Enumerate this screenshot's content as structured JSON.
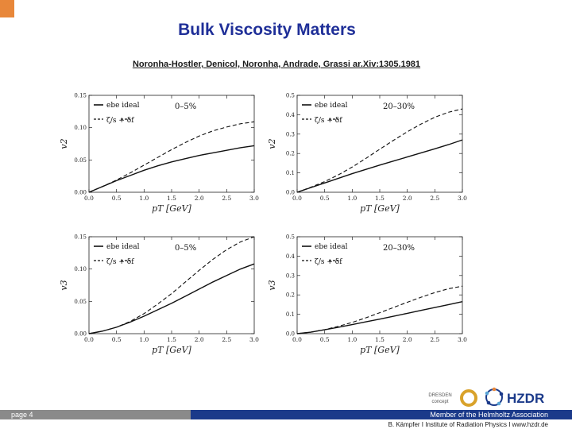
{
  "slide": {
    "title": "Bulk Viscosity Matters",
    "reference": "Noronha-Hostler, Denicol, Noronha, Andrade, Grassi ar.Xiv:1305.1981",
    "page_label": "page 4",
    "member_text": "Member of the Helmholtz Association",
    "credits": "B. Kämpfer  I  Institute of Radiation Physics  I  www.hzdr.de",
    "logo_dresden_line1": "DRESDEN",
    "logo_dresden_line2": "concept",
    "logo_hzdr": "HZDR",
    "accent_color": "#e8873a",
    "title_color": "#1f2f98",
    "footer_blue": "#1b3a8a",
    "footer_gray": "#8a8a8a"
  },
  "chart_data": [
    {
      "type": "line",
      "id": "v2-central",
      "ylabel": "v2",
      "xlabel": "pT [GeV]",
      "centrality": "0–5%",
      "xlim": [
        0,
        3
      ],
      "ylim": [
        0,
        0.15
      ],
      "xticks": [
        "0.0",
        "0.5",
        "1.0",
        "1.5",
        "2.0",
        "2.5",
        "3.0"
      ],
      "yticks": [
        "0.00",
        "0.05",
        "0.10",
        "0.15"
      ],
      "legend": [
        "ebe ideal",
        "ζ/s + δf"
      ],
      "x": [
        0,
        0.25,
        0.5,
        0.75,
        1.0,
        1.25,
        1.5,
        1.75,
        2.0,
        2.25,
        2.5,
        2.75,
        3.0
      ],
      "series": [
        {
          "name": "ebe ideal",
          "style": "solid",
          "values": [
            0,
            0.009,
            0.018,
            0.026,
            0.034,
            0.041,
            0.047,
            0.052,
            0.057,
            0.061,
            0.065,
            0.069,
            0.072
          ]
        },
        {
          "name": "ζ/s + δf",
          "style": "dashed",
          "values": [
            0,
            0.009,
            0.019,
            0.03,
            0.042,
            0.054,
            0.066,
            0.077,
            0.087,
            0.095,
            0.101,
            0.106,
            0.109
          ]
        }
      ]
    },
    {
      "type": "line",
      "id": "v2-midcentral",
      "ylabel": "v2",
      "xlabel": "pT [GeV]",
      "centrality": "20–30%",
      "xlim": [
        0,
        3
      ],
      "ylim": [
        0,
        0.5
      ],
      "xticks": [
        "0.0",
        "0.5",
        "1.0",
        "1.5",
        "2.0",
        "2.5",
        "3.0"
      ],
      "yticks": [
        "0.0",
        "0.1",
        "0.2",
        "0.3",
        "0.4",
        "0.5"
      ],
      "legend": [
        "ebe ideal",
        "ζ/s + δf"
      ],
      "x": [
        0,
        0.25,
        0.5,
        0.75,
        1.0,
        1.25,
        1.5,
        1.75,
        2.0,
        2.25,
        2.5,
        2.75,
        3.0
      ],
      "series": [
        {
          "name": "ebe ideal",
          "style": "solid",
          "values": [
            0,
            0.024,
            0.048,
            0.072,
            0.096,
            0.118,
            0.14,
            0.161,
            0.182,
            0.203,
            0.224,
            0.246,
            0.27
          ]
        },
        {
          "name": "ζ/s + δf",
          "style": "dashed",
          "values": [
            0,
            0.026,
            0.055,
            0.09,
            0.13,
            0.175,
            0.222,
            0.268,
            0.312,
            0.352,
            0.387,
            0.413,
            0.43
          ]
        }
      ]
    },
    {
      "type": "line",
      "id": "v3-central",
      "ylabel": "v3",
      "xlabel": "pT [GeV]",
      "centrality": "0–5%",
      "xlim": [
        0,
        3
      ],
      "ylim": [
        0,
        0.15
      ],
      "xticks": [
        "0.0",
        "0.5",
        "1.0",
        "1.5",
        "2.0",
        "2.5",
        "3.0"
      ],
      "yticks": [
        "0.00",
        "0.05",
        "0.10",
        "0.15"
      ],
      "legend": [
        "ebe ideal",
        "ζ/s + δf"
      ],
      "x": [
        0,
        0.25,
        0.5,
        0.75,
        1.0,
        1.25,
        1.5,
        1.75,
        2.0,
        2.25,
        2.5,
        2.75,
        3.0
      ],
      "series": [
        {
          "name": "ebe ideal",
          "style": "solid",
          "values": [
            0,
            0.004,
            0.01,
            0.018,
            0.027,
            0.037,
            0.047,
            0.058,
            0.069,
            0.08,
            0.09,
            0.1,
            0.108
          ]
        },
        {
          "name": "ζ/s + δf",
          "style": "dashed",
          "values": [
            0,
            0.004,
            0.01,
            0.019,
            0.031,
            0.046,
            0.062,
            0.08,
            0.098,
            0.115,
            0.13,
            0.142,
            0.15
          ]
        }
      ]
    },
    {
      "type": "line",
      "id": "v3-midcentral",
      "ylabel": "v3",
      "xlabel": "pT [GeV]",
      "centrality": "20–30%",
      "xlim": [
        0,
        3
      ],
      "ylim": [
        0,
        0.5
      ],
      "xticks": [
        "0.0",
        "0.5",
        "1.0",
        "1.5",
        "2.0",
        "2.5",
        "3.0"
      ],
      "yticks": [
        "0.0",
        "0.1",
        "0.2",
        "0.3",
        "0.4",
        "0.5"
      ],
      "legend": [
        "ebe ideal",
        "ζ/s + δf"
      ],
      "x": [
        0,
        0.25,
        0.5,
        0.75,
        1.0,
        1.25,
        1.5,
        1.75,
        2.0,
        2.25,
        2.5,
        2.75,
        3.0
      ],
      "series": [
        {
          "name": "ebe ideal",
          "style": "solid",
          "values": [
            0,
            0.008,
            0.02,
            0.033,
            0.047,
            0.061,
            0.075,
            0.09,
            0.105,
            0.12,
            0.135,
            0.15,
            0.165
          ]
        },
        {
          "name": "ζ/s + δf",
          "style": "dashed",
          "values": [
            0,
            0.008,
            0.021,
            0.038,
            0.058,
            0.082,
            0.108,
            0.135,
            0.162,
            0.188,
            0.212,
            0.232,
            0.245
          ]
        }
      ]
    }
  ]
}
